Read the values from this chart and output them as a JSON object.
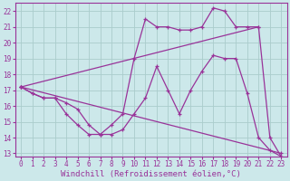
{
  "background_color": "#cce8ea",
  "grid_color": "#aacccc",
  "line_color": "#993399",
  "xlim": [
    -0.5,
    23.5
  ],
  "ylim": [
    12.8,
    22.5
  ],
  "xticks": [
    0,
    1,
    2,
    3,
    4,
    5,
    6,
    7,
    8,
    9,
    10,
    11,
    12,
    13,
    14,
    15,
    16,
    17,
    18,
    19,
    20,
    21,
    22,
    23
  ],
  "yticks": [
    13,
    14,
    15,
    16,
    17,
    18,
    19,
    20,
    21,
    22
  ],
  "xlabel": "Windchill (Refroidissement éolien,°C)",
  "xlabel_fontsize": 6.5,
  "tick_fontsize": 5.5,
  "series": [
    {
      "x": [
        0,
        1,
        2,
        3,
        4,
        5,
        6,
        7,
        8,
        9,
        10,
        11,
        12,
        13,
        14,
        15,
        16,
        17,
        18,
        19,
        20,
        21,
        22,
        23
      ],
      "y": [
        17.2,
        16.8,
        16.5,
        16.5,
        15.5,
        14.8,
        14.2,
        14.2,
        14.8,
        15.5,
        19.0,
        21.5,
        21.0,
        21.0,
        20.8,
        20.8,
        21.0,
        22.2,
        22.0,
        21.0,
        21.0,
        21.0,
        14.0,
        12.8
      ]
    },
    {
      "x": [
        0,
        1,
        2,
        3,
        4,
        5,
        6,
        7,
        8,
        9,
        10,
        11,
        12,
        13,
        14,
        15,
        16,
        17,
        18,
        19,
        20,
        21,
        22,
        23
      ],
      "y": [
        17.2,
        16.8,
        16.5,
        16.5,
        16.2,
        15.8,
        14.8,
        14.2,
        14.2,
        14.5,
        15.5,
        16.5,
        18.5,
        17.0,
        15.5,
        17.0,
        18.2,
        19.2,
        19.0,
        19.0,
        16.8,
        14.0,
        13.2,
        12.8
      ]
    },
    {
      "x": [
        0,
        23
      ],
      "y": [
        17.2,
        13.0
      ]
    },
    {
      "x": [
        0,
        21
      ],
      "y": [
        17.2,
        21.0
      ]
    }
  ]
}
